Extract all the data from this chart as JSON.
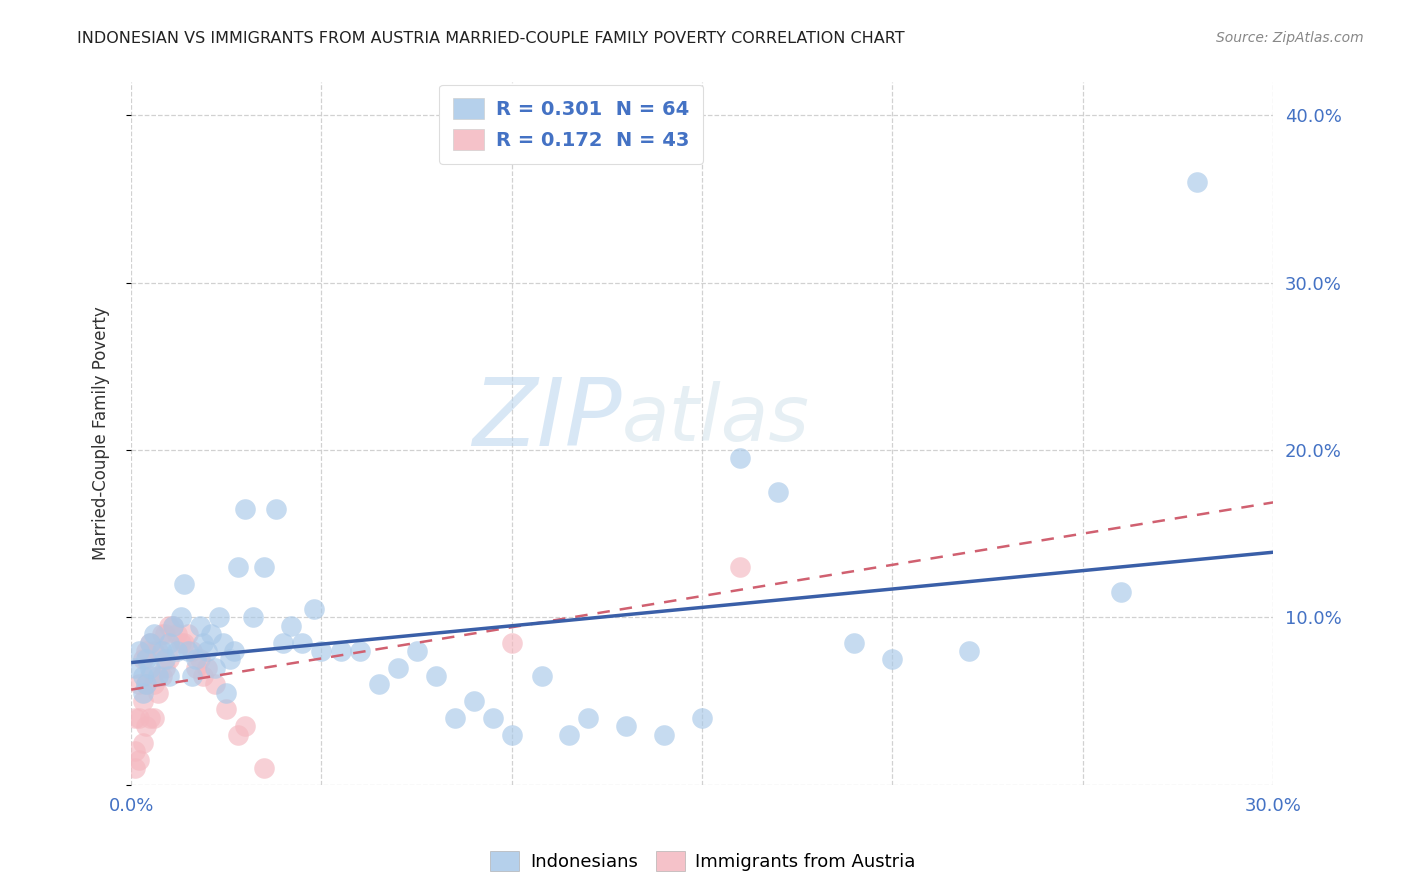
{
  "title": "INDONESIAN VS IMMIGRANTS FROM AUSTRIA MARRIED-COUPLE FAMILY POVERTY CORRELATION CHART",
  "source": "Source: ZipAtlas.com",
  "ylabel": "Married-Couple Family Poverty",
  "xlim": [
    0,
    0.3
  ],
  "ylim": [
    0,
    0.42
  ],
  "indonesian_R": 0.301,
  "indonesian_N": 64,
  "austria_R": 0.172,
  "austria_N": 43,
  "indonesian_color": "#a8c8e8",
  "austria_color": "#f4b8c0",
  "indonesian_line_color": "#3a5fa8",
  "austria_line_color": "#d06070",
  "watermark_zip": "ZIP",
  "watermark_atlas": "atlas",
  "indonesian_x": [
    0.001,
    0.002,
    0.003,
    0.003,
    0.004,
    0.004,
    0.005,
    0.005,
    0.006,
    0.007,
    0.008,
    0.009,
    0.01,
    0.01,
    0.011,
    0.012,
    0.013,
    0.014,
    0.015,
    0.016,
    0.017,
    0.018,
    0.019,
    0.02,
    0.021,
    0.022,
    0.023,
    0.024,
    0.025,
    0.026,
    0.027,
    0.028,
    0.03,
    0.032,
    0.035,
    0.038,
    0.04,
    0.042,
    0.045,
    0.048,
    0.05,
    0.055,
    0.06,
    0.065,
    0.07,
    0.075,
    0.08,
    0.085,
    0.09,
    0.095,
    0.1,
    0.108,
    0.115,
    0.12,
    0.13,
    0.14,
    0.15,
    0.16,
    0.17,
    0.19,
    0.2,
    0.22,
    0.26,
    0.28
  ],
  "indonesian_y": [
    0.07,
    0.08,
    0.065,
    0.055,
    0.075,
    0.06,
    0.085,
    0.07,
    0.09,
    0.065,
    0.08,
    0.075,
    0.085,
    0.065,
    0.095,
    0.08,
    0.1,
    0.12,
    0.08,
    0.065,
    0.075,
    0.095,
    0.085,
    0.08,
    0.09,
    0.07,
    0.1,
    0.085,
    0.055,
    0.075,
    0.08,
    0.13,
    0.165,
    0.1,
    0.13,
    0.165,
    0.085,
    0.095,
    0.085,
    0.105,
    0.08,
    0.08,
    0.08,
    0.06,
    0.07,
    0.08,
    0.065,
    0.04,
    0.05,
    0.04,
    0.03,
    0.065,
    0.03,
    0.04,
    0.035,
    0.03,
    0.04,
    0.195,
    0.175,
    0.085,
    0.075,
    0.08,
    0.115,
    0.36
  ],
  "austria_x": [
    0.001,
    0.001,
    0.001,
    0.002,
    0.002,
    0.002,
    0.003,
    0.003,
    0.003,
    0.004,
    0.004,
    0.004,
    0.005,
    0.005,
    0.005,
    0.006,
    0.006,
    0.006,
    0.007,
    0.007,
    0.008,
    0.008,
    0.009,
    0.009,
    0.01,
    0.01,
    0.011,
    0.012,
    0.013,
    0.014,
    0.015,
    0.016,
    0.017,
    0.018,
    0.019,
    0.02,
    0.022,
    0.025,
    0.028,
    0.03,
    0.035,
    0.1,
    0.16
  ],
  "austria_y": [
    0.04,
    0.02,
    0.01,
    0.06,
    0.04,
    0.015,
    0.075,
    0.05,
    0.025,
    0.08,
    0.06,
    0.035,
    0.085,
    0.065,
    0.04,
    0.08,
    0.06,
    0.04,
    0.08,
    0.055,
    0.09,
    0.065,
    0.09,
    0.07,
    0.095,
    0.075,
    0.095,
    0.09,
    0.085,
    0.085,
    0.09,
    0.08,
    0.07,
    0.075,
    0.065,
    0.07,
    0.06,
    0.045,
    0.03,
    0.035,
    0.01,
    0.085,
    0.13
  ]
}
